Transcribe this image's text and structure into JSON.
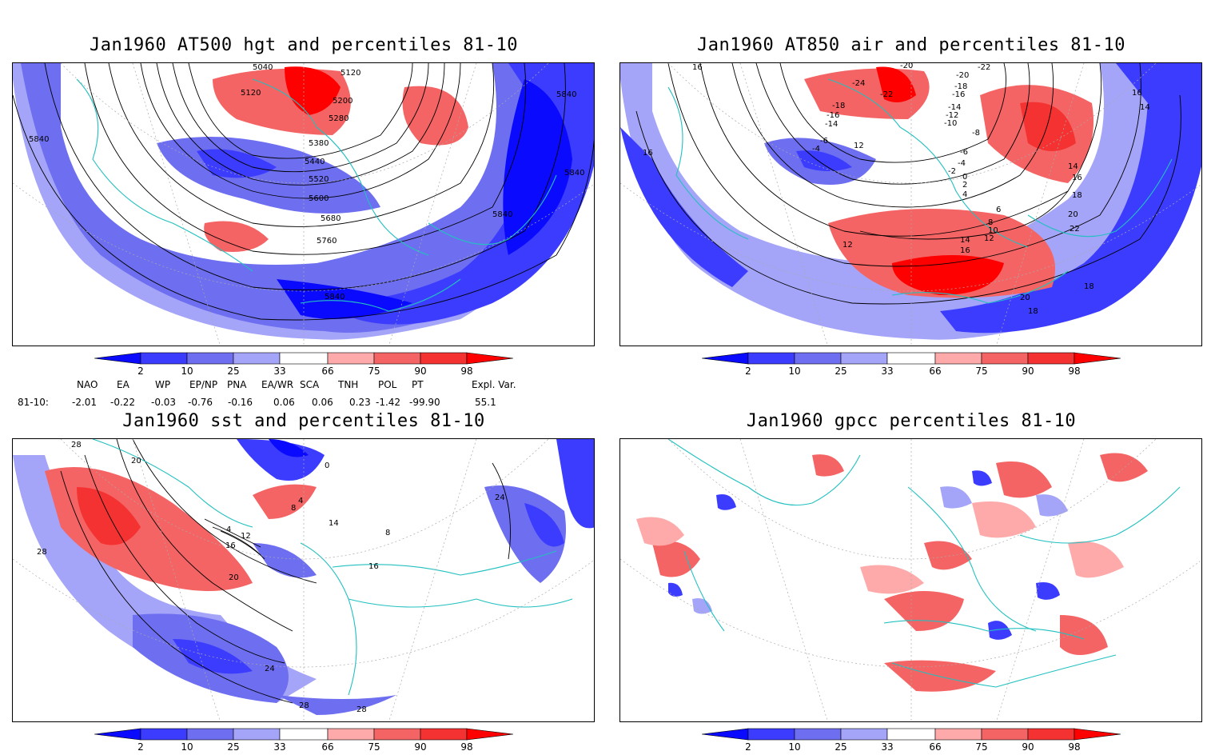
{
  "panels": [
    {
      "title": "Jan1960 AT500 hgt and percentiles 81-10",
      "contour_labels": [
        "5040",
        "5120",
        "5120",
        "5200",
        "5280",
        "5380",
        "5440",
        "5520",
        "5600",
        "5680",
        "5760",
        "5840",
        "5840",
        "5840",
        "5840",
        "5840"
      ]
    },
    {
      "title": "Jan1960 AT850 air and percentiles 81-10",
      "contour_labels": [
        "16",
        "-20",
        "-22",
        "-24",
        "-20",
        "-18",
        "-16",
        "-18",
        "-16",
        "-14",
        "-22",
        "-14",
        "-12",
        "-10",
        "-8",
        "-6",
        "-4",
        "-2",
        "0",
        "2",
        "4",
        "6",
        "8",
        "10",
        "12",
        "12",
        "14",
        "16",
        "14",
        "16",
        "18",
        "20",
        "22",
        "20",
        "18",
        "18",
        "16",
        "14",
        "-4",
        "-6",
        "16",
        "12"
      ]
    },
    {
      "title": "Jan1960 sst and percentiles 81-10",
      "contour_labels": [
        "28",
        "20",
        "0",
        "4",
        "8",
        "4",
        "12",
        "16",
        "20",
        "24",
        "28",
        "28",
        "16",
        "24",
        "28",
        "14",
        "8"
      ]
    },
    {
      "title": "Jan1960 gpcc percentiles 81-10",
      "contour_labels": []
    }
  ],
  "colorbar": {
    "labels": [
      "2",
      "10",
      "25",
      "33",
      "66",
      "75",
      "90",
      "98"
    ],
    "colors": [
      "#0a0aff",
      "#3c3cff",
      "#6e6ef0",
      "#a4a4f8",
      "#ffffff",
      "#ffaaaa",
      "#f56464",
      "#f53232",
      "#ff0000"
    ]
  },
  "indices": {
    "headers": [
      "NAO",
      "EA",
      "WP",
      "EP/NP",
      "PNA",
      "EA/WR",
      "SCA",
      "TNH",
      "POL",
      "PT",
      "Expl. Var."
    ],
    "row_label": "81-10:",
    "values": [
      "-2.01",
      "-0.22",
      "-0.03",
      "-0.76",
      "-0.16",
      "0.06",
      "0.06",
      "0.23",
      "-1.42",
      "-99.90",
      "55.1"
    ]
  }
}
